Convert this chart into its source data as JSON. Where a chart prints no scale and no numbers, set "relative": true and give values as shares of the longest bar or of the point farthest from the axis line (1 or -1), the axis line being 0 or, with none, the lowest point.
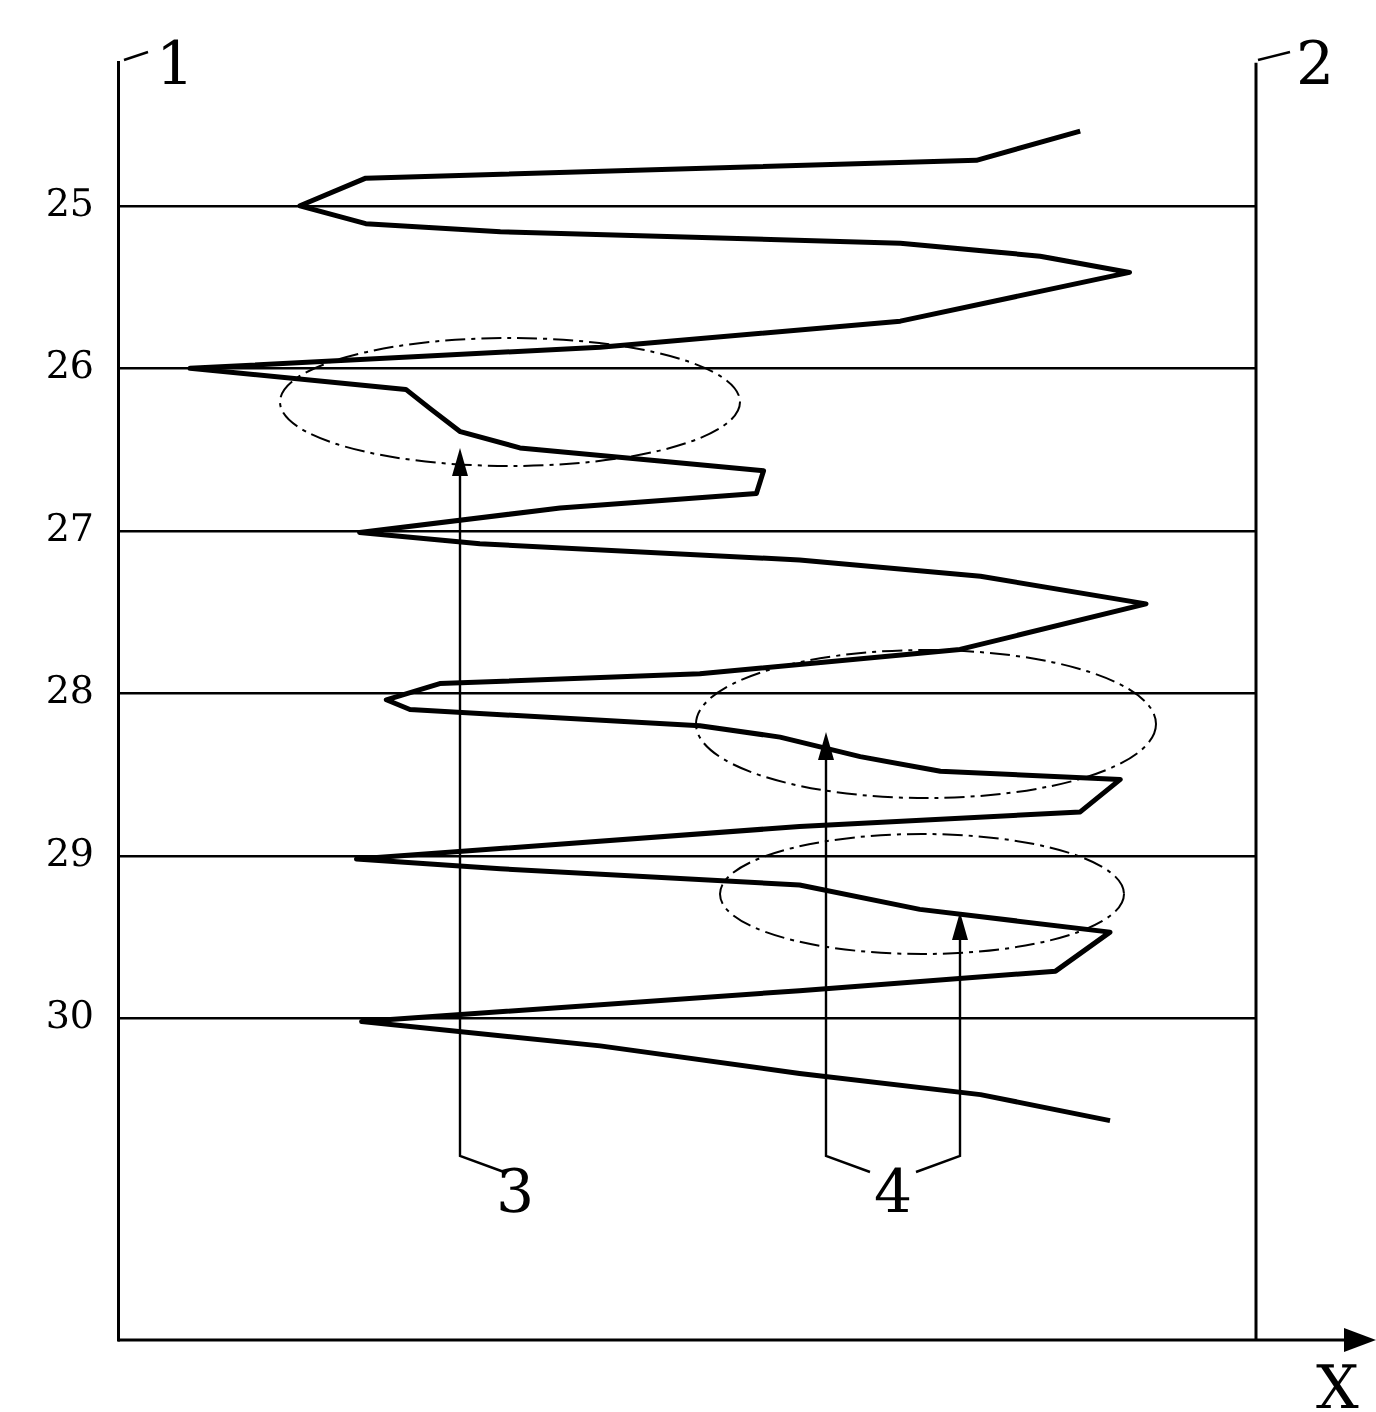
{
  "chart_data": {
    "type": "line",
    "orientation": "horizontal",
    "relative": true,
    "xlabel": "X",
    "annotations": [
      "1",
      "2",
      "3",
      "4"
    ],
    "ylim": [
      31.98,
      24.12
    ],
    "yticks": [
      25,
      26,
      27,
      28,
      29,
      30
    ],
    "grid": "y",
    "legend": false,
    "marker": "none",
    "line_style": "solid",
    "x": [
      24.54,
      24.72,
      24.83,
      25,
      25.11,
      25.16,
      25.23,
      25.31,
      25.41,
      25.71,
      25.87,
      26,
      26.13,
      26.25,
      26.39,
      26.49,
      26.57,
      26.63,
      26.77,
      26.86,
      27.01,
      27.08,
      27.18,
      27.28,
      27.45,
      27.73,
      27.88,
      27.94,
      28.04,
      28.1,
      28.2,
      28.27,
      28.39,
      28.48,
      28.53,
      28.73,
      28.82,
      29.02,
      29.08,
      29.18,
      29.33,
      29.47,
      29.71,
      29.83,
      30.02,
      30.17,
      30.34,
      30.47,
      30.63
    ],
    "series": [
      {
        "color": "#000000",
        "values": [
          0.936,
          0.835,
          0.241,
          0.177,
          0.241,
          0.372,
          0.761,
          0.897,
          0.984,
          0.761,
          0.469,
          0.07,
          0.28,
          0.304,
          0.333,
          0.391,
          0.527,
          0.628,
          0.621,
          0.43,
          0.235,
          0.352,
          0.663,
          0.839,
          1,
          0.819,
          0.566,
          0.313,
          0.261,
          0.284,
          0.566,
          0.644,
          0.722,
          0.8,
          0.975,
          0.936,
          0.663,
          0.232,
          0.372,
          0.663,
          0.78,
          0.965,
          0.912,
          0.663,
          0.237,
          0.469,
          0.663,
          0.839,
          0.965
        ]
      }
    ]
  }
}
